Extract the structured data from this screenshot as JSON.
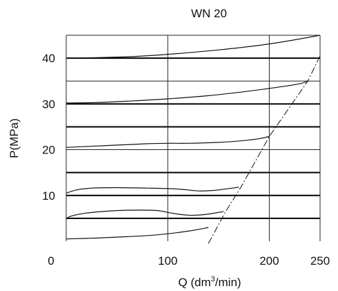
{
  "chart_data": {
    "type": "line",
    "title": "WN 20",
    "xlabel": "Q (dm",
    "xlabel_sup": "3",
    "xlabel_tail": "/min)",
    "ylabel": "P(MPa)",
    "xlim": [
      0,
      250
    ],
    "ylim": [
      0,
      45
    ],
    "x_ticks": [
      0,
      100,
      200,
      250
    ],
    "x_tick_labels": [
      "0",
      "100",
      "200",
      "250"
    ],
    "y_ticks": [
      10,
      20,
      30,
      40
    ],
    "y_tick_labels": [
      "10",
      "20",
      "30",
      "40"
    ],
    "y_grid_bold": [
      5,
      10,
      15,
      25,
      30,
      40
    ],
    "y_grid_thin": [
      20,
      35
    ],
    "x_grid": [
      100,
      200
    ],
    "series": [
      {
        "values": [
          [
            0,
            0.5
          ],
          [
            30,
            0.7
          ],
          [
            60,
            1.0
          ],
          [
            90,
            1.4
          ],
          [
            120,
            2.2
          ],
          [
            140,
            3.0
          ]
        ]
      },
      {
        "values": [
          [
            0,
            5
          ],
          [
            5,
            5.5
          ],
          [
            15,
            6.0
          ],
          [
            30,
            6.4
          ],
          [
            50,
            6.7
          ],
          [
            70,
            6.8
          ],
          [
            90,
            6.7
          ],
          [
            105,
            6.1
          ],
          [
            120,
            5.7
          ],
          [
            135,
            5.8
          ],
          [
            150,
            6.3
          ],
          [
            155,
            6.5
          ]
        ]
      },
      {
        "values": [
          [
            0,
            10.5
          ],
          [
            10,
            11.2
          ],
          [
            25,
            11.6
          ],
          [
            50,
            11.7
          ],
          [
            80,
            11.6
          ],
          [
            110,
            11.4
          ],
          [
            130,
            11.0
          ],
          [
            145,
            11.1
          ],
          [
            160,
            11.5
          ],
          [
            170,
            11.8
          ]
        ]
      },
      {
        "values": [
          [
            0,
            20.5
          ],
          [
            20,
            20.7
          ],
          [
            50,
            21.0
          ],
          [
            80,
            21.3
          ],
          [
            100,
            21.4
          ],
          [
            120,
            21.4
          ],
          [
            150,
            21.6
          ],
          [
            175,
            22.0
          ],
          [
            190,
            22.4
          ],
          [
            200,
            22.9
          ]
        ]
      },
      {
        "values": [
          [
            0,
            30.2
          ],
          [
            30,
            30.3
          ],
          [
            60,
            30.6
          ],
          [
            100,
            31.1
          ],
          [
            140,
            31.8
          ],
          [
            180,
            32.8
          ],
          [
            210,
            33.7
          ],
          [
            230,
            34.4
          ],
          [
            238,
            35.0
          ]
        ]
      },
      {
        "values": [
          [
            0,
            40
          ],
          [
            30,
            40.1
          ],
          [
            70,
            40.4
          ],
          [
            110,
            41.0
          ],
          [
            150,
            41.8
          ],
          [
            190,
            42.8
          ],
          [
            220,
            43.8
          ],
          [
            250,
            45
          ]
        ]
      }
    ],
    "limit_line": {
      "style": "dash-dot",
      "values": [
        [
          140,
          -0.5
        ],
        [
          157,
          6.5
        ],
        [
          172,
          11.8
        ],
        [
          200,
          22.9
        ],
        [
          238,
          35.0
        ],
        [
          250,
          40.5
        ]
      ]
    }
  }
}
